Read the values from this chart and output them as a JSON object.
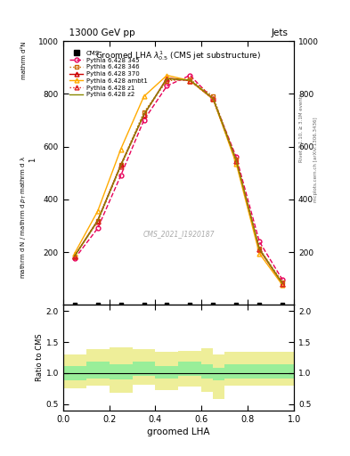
{
  "title_top": "13000 GeV pp",
  "title_right": "Jets",
  "plot_title": "Groomed LHA $\\lambda^{1}_{0.5}$ (CMS jet substructure)",
  "xlabel": "groomed LHA",
  "ylabel_main_outer": "mathrm d²N",
  "ylabel_main_inner": "1\n―\nmathrm d N / mathrm d pₜ mathrm d λ",
  "ylabel_ratio": "Ratio to CMS",
  "cms_watermark": "CMS_2021_I1920187",
  "right_label1": "Rivet 3.1.10, ≥ 3.1M events",
  "right_label2": "mcplots.cern.ch [arXiv:1306.3436]",
  "lines": [
    {
      "label": "Pythia 6.428 345",
      "color": "#e8005a",
      "linestyle": "--",
      "marker": "o",
      "x": [
        0.05,
        0.15,
        0.25,
        0.35,
        0.45,
        0.55,
        0.65,
        0.75,
        0.85,
        0.95
      ],
      "y": [
        175,
        290,
        490,
        700,
        830,
        870,
        780,
        560,
        240,
        95
      ]
    },
    {
      "label": "Pythia 6.428 346",
      "color": "#cc6600",
      "linestyle": ":",
      "marker": "s",
      "x": [
        0.05,
        0.15,
        0.25,
        0.35,
        0.45,
        0.55,
        0.65,
        0.75,
        0.85,
        0.95
      ],
      "y": [
        185,
        320,
        530,
        730,
        850,
        855,
        790,
        550,
        215,
        85
      ]
    },
    {
      "label": "Pythia 6.428 370",
      "color": "#cc0000",
      "linestyle": "-",
      "marker": "^",
      "x": [
        0.05,
        0.15,
        0.25,
        0.35,
        0.45,
        0.55,
        0.65,
        0.75,
        0.85,
        0.95
      ],
      "y": [
        185,
        320,
        530,
        720,
        860,
        850,
        780,
        545,
        210,
        80
      ]
    },
    {
      "label": "Pythia 6.428 ambt1",
      "color": "#ffaa00",
      "linestyle": "-",
      "marker": "^",
      "x": [
        0.05,
        0.15,
        0.25,
        0.35,
        0.45,
        0.55,
        0.65,
        0.75,
        0.85,
        0.95
      ],
      "y": [
        195,
        355,
        590,
        790,
        870,
        850,
        780,
        535,
        195,
        75
      ]
    },
    {
      "label": "Pythia 6.428 z1",
      "color": "#dd2222",
      "linestyle": ":",
      "marker": "^",
      "x": [
        0.05,
        0.15,
        0.25,
        0.35,
        0.45,
        0.55,
        0.65,
        0.75,
        0.85,
        0.95
      ],
      "y": [
        185,
        315,
        525,
        720,
        855,
        850,
        780,
        545,
        210,
        80
      ]
    },
    {
      "label": "Pythia 6.428 z2",
      "color": "#888800",
      "linestyle": "-",
      "marker": null,
      "x": [
        0.05,
        0.15,
        0.25,
        0.35,
        0.45,
        0.55,
        0.65,
        0.75,
        0.85,
        0.95
      ],
      "y": [
        185,
        318,
        528,
        722,
        857,
        852,
        782,
        547,
        212,
        81
      ]
    }
  ],
  "cms_x": [
    0.05,
    0.15,
    0.25,
    0.35,
    0.45,
    0.55,
    0.65,
    0.75,
    0.85,
    0.95
  ],
  "cms_y_on_axis": true,
  "ratio_x_edges": [
    0.0,
    0.1,
    0.2,
    0.3,
    0.4,
    0.5,
    0.6,
    0.65,
    0.7,
    1.0
  ],
  "ratio_green_lo": [
    0.88,
    0.92,
    0.9,
    0.95,
    0.92,
    0.95,
    0.92,
    0.88,
    0.92,
    0.92
  ],
  "ratio_green_hi": [
    1.12,
    1.18,
    1.15,
    1.18,
    1.12,
    1.18,
    1.15,
    1.08,
    1.15,
    1.15
  ],
  "ratio_yellow_lo": [
    0.75,
    0.8,
    0.68,
    0.82,
    0.72,
    0.78,
    0.7,
    0.58,
    0.8,
    0.8
  ],
  "ratio_yellow_hi": [
    1.3,
    1.38,
    1.42,
    1.38,
    1.35,
    1.36,
    1.4,
    1.3,
    1.35,
    1.35
  ],
  "ylim_main": [
    0,
    1000
  ],
  "ylim_ratio": [
    0.4,
    2.1
  ],
  "xlim": [
    0,
    1
  ],
  "yticks_main": [
    200,
    400,
    600,
    800,
    1000
  ],
  "yticks_ratio": [
    0.5,
    1.0,
    1.5,
    2.0
  ],
  "background_color": "#ffffff",
  "green_color": "#99ee99",
  "yellow_color": "#eeee99"
}
